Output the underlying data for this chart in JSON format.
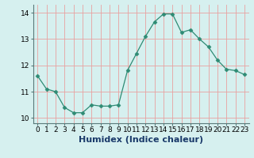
{
  "x": [
    0,
    1,
    2,
    3,
    4,
    5,
    6,
    7,
    8,
    9,
    10,
    11,
    12,
    13,
    14,
    15,
    16,
    17,
    18,
    19,
    20,
    21,
    22,
    23
  ],
  "y": [
    11.6,
    11.1,
    11.0,
    10.4,
    10.2,
    10.2,
    10.5,
    10.45,
    10.45,
    10.5,
    11.8,
    12.45,
    13.1,
    13.65,
    13.95,
    13.95,
    13.25,
    13.35,
    13.0,
    12.7,
    12.2,
    11.85,
    11.8,
    11.65
  ],
  "line_color": "#2e8b74",
  "marker": "D",
  "marker_size": 2.5,
  "bg_color": "#d6f0ef",
  "grid_color": "#e8a0a0",
  "xlabel": "Humidex (Indice chaleur)",
  "ylim": [
    9.8,
    14.3
  ],
  "xlim": [
    -0.5,
    23.5
  ],
  "yticks": [
    10,
    11,
    12,
    13,
    14
  ],
  "xticks": [
    0,
    1,
    2,
    3,
    4,
    5,
    6,
    7,
    8,
    9,
    10,
    11,
    12,
    13,
    14,
    15,
    16,
    17,
    18,
    19,
    20,
    21,
    22,
    23
  ],
  "tick_fontsize": 6.5,
  "xlabel_fontsize": 8,
  "xlabel_color": "#1a3a6a",
  "spine_color": "#5a7a7a"
}
